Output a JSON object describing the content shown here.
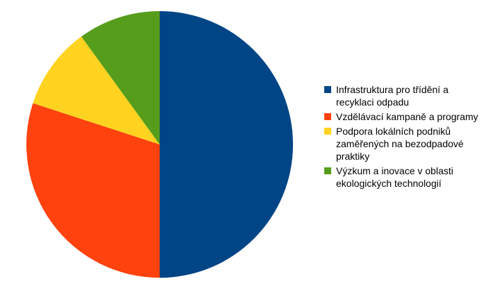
{
  "chart_data": {
    "type": "pie",
    "title": "",
    "legend_position": "right",
    "slices": [
      {
        "label": "Infrastruktura pro třídění a recyklaci odpadu",
        "value": 50,
        "color": "#004586"
      },
      {
        "label": "Vzdělávací kampaně a programy",
        "value": 30,
        "color": "#ff420e"
      },
      {
        "label": "Podpora lokálních podniků zaměřených na bezodpadové praktiky",
        "value": 10,
        "color": "#ffd320"
      },
      {
        "label": "Výzkum a inovace v oblasti ekologických technologií",
        "value": 10,
        "color": "#579d1c"
      }
    ]
  }
}
